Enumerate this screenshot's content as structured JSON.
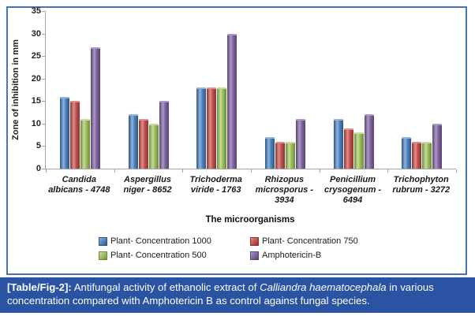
{
  "figure": {
    "frame_border_color": "#4576ac",
    "background": "#ffffff"
  },
  "chart_data": {
    "type": "bar",
    "title": "",
    "categories": [
      "Candida albicans - 4748",
      "Aspergillus niger - 8652",
      "Trichoderma viride - 1763",
      "Rhizopus microsporus - 3934",
      "Penicillium crysogenum - 6494",
      "Trichophyton rubrum - 3272"
    ],
    "series": [
      {
        "name": "Plant-  Concentration 1000",
        "color": "#4f81bd",
        "color_light": "#8fb4e0",
        "color_dark": "#2d5884",
        "values": [
          16,
          12,
          18,
          7,
          11,
          7
        ]
      },
      {
        "name": "Plant-  Concentration 750",
        "color": "#c0504d",
        "color_light": "#de8e8c",
        "color_dark": "#8e3532",
        "values": [
          15,
          11,
          18,
          6,
          9,
          6
        ]
      },
      {
        "name": "Plant-  Concentration 500",
        "color": "#9bbb59",
        "color_light": "#c8dc9d",
        "color_dark": "#6f8b39",
        "values": [
          11,
          10,
          18,
          6,
          8,
          6
        ]
      },
      {
        "name": "Amphotericin-B",
        "color": "#8064a2",
        "color_light": "#ab9ac6",
        "color_dark": "#59456f",
        "values": [
          27,
          15,
          30,
          11,
          12,
          10
        ]
      }
    ],
    "xlabel": "The  microorganisms",
    "ylabel": "Zone of inhibition in mm",
    "ylim": [
      0,
      35
    ],
    "ytick_step": 5,
    "grid": false,
    "legend_position": "bottom",
    "axis_color": "#a6a6a6",
    "tick_label_color": "#1f1f1f"
  },
  "caption": {
    "tag": "[Table/Fig-2]:",
    "before_italic": " Antifungal activity of ethanolic extract of ",
    "italic_text": "Calliandra haematocephala",
    "after_italic": " in various concentration compared with Amphotericin B as control against fungal species.",
    "background": "#2b53a3",
    "text_color": "#ffffff"
  }
}
